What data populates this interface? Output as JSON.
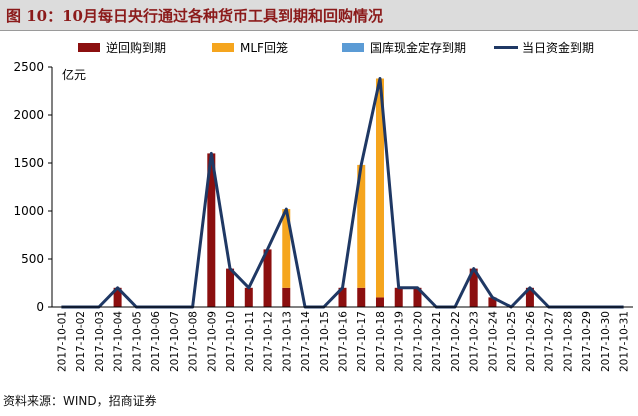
{
  "title": "图 10：10月每日央行通过各种货币工具到期和回购情况",
  "source": "资料来源：WIND，招商证券",
  "chart_data": {
    "type": "bar",
    "stacked": true,
    "unit": "亿元",
    "ylim": [
      0,
      2500
    ],
    "yticks": [
      0,
      500,
      1000,
      1500,
      2000,
      2500
    ],
    "categories": [
      "2017-10-01",
      "2017-10-02",
      "2017-10-03",
      "2017-10-04",
      "2017-10-05",
      "2017-10-06",
      "2017-10-07",
      "2017-10-08",
      "2017-10-09",
      "2017-10-10",
      "2017-10-11",
      "2017-10-12",
      "2017-10-13",
      "2017-10-14",
      "2017-10-15",
      "2017-10-16",
      "2017-10-17",
      "2017-10-18",
      "2017-10-19",
      "2017-10-20",
      "2017-10-21",
      "2017-10-22",
      "2017-10-23",
      "2017-10-24",
      "2017-10-25",
      "2017-10-26",
      "2017-10-27",
      "2017-10-28",
      "2017-10-29",
      "2017-10-30",
      "2017-10-31"
    ],
    "series": [
      {
        "name": "逆回购到期",
        "type": "bar",
        "color": "#8b0f0f",
        "values": [
          0,
          0,
          0,
          200,
          0,
          0,
          0,
          0,
          1600,
          400,
          200,
          600,
          200,
          0,
          0,
          200,
          200,
          100,
          200,
          200,
          0,
          0,
          400,
          100,
          0,
          200,
          0,
          0,
          0,
          0,
          0
        ]
      },
      {
        "name": "MLF回笼",
        "type": "bar",
        "color": "#f5a51e",
        "values": [
          0,
          0,
          0,
          0,
          0,
          0,
          0,
          0,
          0,
          0,
          0,
          0,
          820,
          0,
          0,
          0,
          1280,
          2280,
          0,
          0,
          0,
          0,
          0,
          0,
          0,
          0,
          0,
          0,
          0,
          0,
          0
        ]
      },
      {
        "name": "国库现金定存到期",
        "type": "bar",
        "color": "#5b9bd5",
        "values": [
          0,
          0,
          0,
          0,
          0,
          0,
          0,
          0,
          0,
          0,
          0,
          0,
          0,
          0,
          0,
          0,
          0,
          0,
          0,
          0,
          0,
          0,
          0,
          0,
          0,
          0,
          0,
          0,
          0,
          0,
          0
        ]
      },
      {
        "name": "当日资金到期",
        "type": "line",
        "color": "#1f3864",
        "values": [
          0,
          0,
          0,
          200,
          0,
          0,
          0,
          0,
          1600,
          400,
          200,
          600,
          1020,
          0,
          0,
          200,
          1480,
          2380,
          200,
          200,
          0,
          0,
          400,
          100,
          0,
          200,
          0,
          0,
          0,
          0,
          0
        ]
      }
    ]
  }
}
